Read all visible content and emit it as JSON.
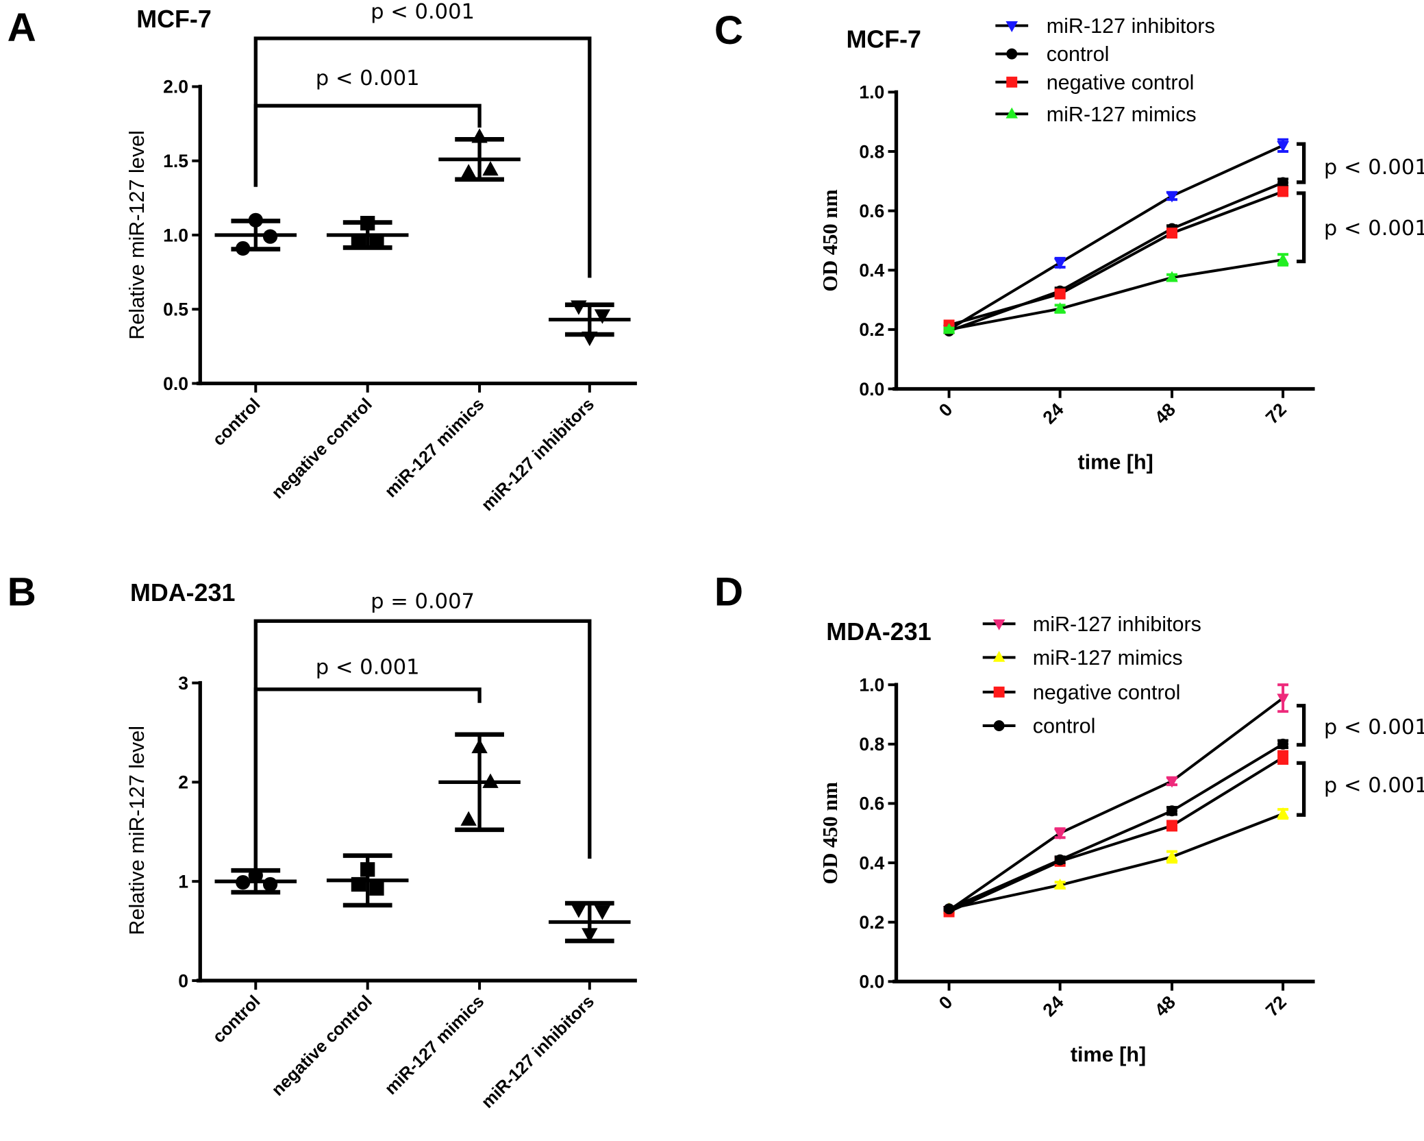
{
  "chart_data": [
    {
      "panel_label": "A",
      "type": "scatter",
      "title": "MCF-7",
      "ylabel": "Relative miR-127 level",
      "xlabel": "",
      "ylim": [
        0,
        2.0
      ],
      "yticks": [
        "0.0",
        "0.5",
        "1.0",
        "1.5",
        "2.0"
      ],
      "categories": [
        "control",
        "negative control",
        "miR-127 mimics",
        "miR-127 inhibitors"
      ],
      "groups": [
        {
          "name": "control",
          "marker": "circle",
          "points": [
            1.1,
            0.99,
            0.91
          ],
          "mean": 1.0,
          "sd": 0.095
        },
        {
          "name": "negative control",
          "marker": "square",
          "points": [
            1.08,
            0.95,
            0.95
          ],
          "mean": 1.0,
          "sd": 0.085
        },
        {
          "name": "miR-127 mimics",
          "marker": "triangle-up",
          "points": [
            1.66,
            1.44,
            1.42
          ],
          "mean": 1.51,
          "sd": 0.135
        },
        {
          "name": "miR-127 inhibitors",
          "marker": "triangle-down",
          "points": [
            0.52,
            0.46,
            0.31
          ],
          "mean": 0.43,
          "sd": 0.1
        }
      ],
      "annotations": [
        {
          "from": "control",
          "to": "miR-127 inhibitors",
          "label": "p < 0.001"
        },
        {
          "from": "control",
          "to": "miR-127 mimics",
          "label": "p < 0.001"
        }
      ],
      "grid": false
    },
    {
      "panel_label": "B",
      "type": "scatter",
      "title": "MDA-231",
      "ylabel": "Relative miR-127 level",
      "xlabel": "",
      "ylim": [
        0,
        3
      ],
      "yticks": [
        "0",
        "1",
        "2",
        "3"
      ],
      "categories": [
        "control",
        "negative control",
        "miR-127 mimics",
        "miR-127 inhibitors"
      ],
      "groups": [
        {
          "name": "control",
          "marker": "circle",
          "points": [
            1.06,
            0.97,
            0.99
          ],
          "mean": 1.0,
          "sd": 0.11
        },
        {
          "name": "negative control",
          "marker": "square",
          "points": [
            1.12,
            0.93,
            0.97
          ],
          "mean": 1.01,
          "sd": 0.25
        },
        {
          "name": "miR-127 mimics",
          "marker": "triangle-up",
          "points": [
            2.35,
            2.0,
            1.62
          ],
          "mean": 2.0,
          "sd": 0.48
        },
        {
          "name": "miR-127 inhibitors",
          "marker": "triangle-down",
          "points": [
            0.72,
            0.7,
            0.47
          ],
          "mean": 0.59,
          "sd": 0.19
        }
      ],
      "annotations": [
        {
          "from": "control",
          "to": "miR-127 inhibitors",
          "label": "p = 0.007"
        },
        {
          "from": "control",
          "to": "miR-127 mimics",
          "label": "p < 0.001"
        }
      ],
      "grid": false
    },
    {
      "panel_label": "C",
      "type": "line",
      "title": "MCF-7",
      "ylabel": "OD 450 nm",
      "xlabel": "time [h]",
      "ylim": [
        0,
        1.0
      ],
      "yticks": [
        "0.0",
        "0.2",
        "0.4",
        "0.6",
        "0.8",
        "1.0"
      ],
      "x": [
        0,
        24,
        48,
        72
      ],
      "xticks": [
        "0",
        "24",
        "48",
        "72"
      ],
      "legend_position": "top",
      "series": [
        {
          "name": "miR-127 inhibitors",
          "marker": "triangle-down",
          "color": "#1a1aff",
          "values": [
            0.2,
            0.425,
            0.65,
            0.82
          ],
          "errors": [
            0.005,
            0.015,
            0.012,
            0.02
          ]
        },
        {
          "name": "control",
          "marker": "circle",
          "color": "#000000",
          "values": [
            0.195,
            0.33,
            0.54,
            0.695
          ],
          "errors": [
            0.005,
            0.01,
            0.01,
            0.012
          ]
        },
        {
          "name": "negative control",
          "marker": "square",
          "color": "#ff1a1a",
          "values": [
            0.215,
            0.32,
            0.525,
            0.665
          ],
          "errors": [
            0.005,
            0.01,
            0.01,
            0.01
          ]
        },
        {
          "name": "miR-127 mimics",
          "marker": "triangle-up",
          "color": "#22ee22",
          "values": [
            0.2,
            0.27,
            0.375,
            0.435
          ],
          "errors": [
            0.005,
            0.012,
            0.01,
            0.018
          ]
        }
      ],
      "annotations": [
        {
          "between": [
            "miR-127 inhibitors",
            "control"
          ],
          "label": "p < 0.001"
        },
        {
          "between": [
            "negative control",
            "miR-127 mimics"
          ],
          "label": "p < 0.001"
        }
      ],
      "grid": false
    },
    {
      "panel_label": "D",
      "type": "line",
      "title": "MDA-231",
      "ylabel": "OD 450 nm",
      "xlabel": "time [h]",
      "ylim": [
        0,
        1.0
      ],
      "yticks": [
        "0.0",
        "0.2",
        "0.4",
        "0.6",
        "0.8",
        "1.0"
      ],
      "x": [
        0,
        24,
        48,
        72
      ],
      "xticks": [
        "0",
        "24",
        "48",
        "72"
      ],
      "legend_position": "top",
      "series": [
        {
          "name": "miR-127 inhibitors",
          "marker": "triangle-down",
          "color": "#ee2a7b",
          "values": [
            0.24,
            0.5,
            0.675,
            0.955
          ],
          "errors": [
            0.005,
            0.015,
            0.012,
            0.045
          ]
        },
        {
          "name": "miR-127 mimics",
          "marker": "triangle-up",
          "color": "#ffff00",
          "values": [
            0.245,
            0.325,
            0.42,
            0.565
          ],
          "errors": [
            0.005,
            0.01,
            0.018,
            0.015
          ]
        },
        {
          "name": "negative control",
          "marker": "square",
          "color": "#ff1a1a",
          "values": [
            0.235,
            0.405,
            0.525,
            0.755
          ],
          "errors": [
            0.005,
            0.01,
            0.015,
            0.02
          ]
        },
        {
          "name": "control",
          "marker": "circle",
          "color": "#000000",
          "values": [
            0.245,
            0.41,
            0.575,
            0.8
          ],
          "errors": [
            0.005,
            0.01,
            0.012,
            0.012
          ]
        }
      ],
      "annotations": [
        {
          "between": [
            "miR-127 inhibitors",
            "control"
          ],
          "label": "p < 0.001"
        },
        {
          "between": [
            "negative control",
            "miR-127 mimics"
          ],
          "label": "p < 0.001"
        }
      ],
      "grid": false
    }
  ]
}
